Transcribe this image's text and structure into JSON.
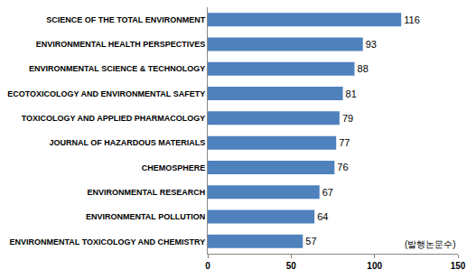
{
  "chart_data": {
    "type": "bar",
    "orientation": "horizontal",
    "categories": [
      "SCIENCE OF THE TOTAL ENVIRONMENT",
      "ENVIRONMENTAL HEALTH PERSPECTIVES",
      "ENVIRONMENTAL SCIENCE & TECHNOLOGY",
      "ECOTOXICOLOGY AND ENVIRONMENTAL SAFETY",
      "TOXICOLOGY AND APPLIED PHARMACOLOGY",
      "JOURNAL OF HAZARDOUS MATERIALS",
      "CHEMOSPHERE",
      "ENVIRONMENTAL RESEARCH",
      "ENVIRONMENTAL POLLUTION",
      "ENVIRONMENTAL TOXICOLOGY AND CHEMISTRY"
    ],
    "values": [
      116,
      93,
      88,
      81,
      79,
      77,
      76,
      67,
      64,
      57
    ],
    "color": "#4f81bd",
    "xlim": [
      0,
      150
    ],
    "xticks": [
      0,
      50,
      100,
      150
    ],
    "grid": false,
    "data_labels": true,
    "annotations": [
      "(발행논문수)"
    ]
  }
}
